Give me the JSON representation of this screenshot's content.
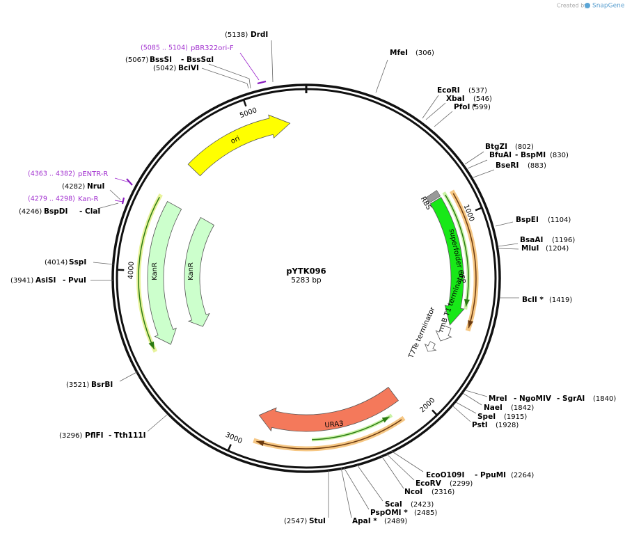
{
  "header": {
    "created_by": "Created by",
    "brand": "SnapGene"
  },
  "map": {
    "name": "pYTK096",
    "size": "5283 bp"
  },
  "ticks": [
    "1000",
    "2000",
    "3000",
    "4000",
    "5000"
  ],
  "features": [
    "ori",
    "KanR",
    "KanR",
    "URA3",
    "superfolder GFP",
    "RBS",
    "rrnB T1 terminator",
    "T7Te terminator"
  ],
  "primers": [
    {
      "range": "(5085 .. 5104)",
      "name": "pBR322ori-F"
    },
    {
      "range": "(4363 .. 4382)",
      "name": "pENTR-R"
    },
    {
      "range": "(4279 .. 4298)",
      "name": "Kan-R"
    }
  ],
  "enzymes": [
    {
      "position": "(5138)",
      "names": [
        "DrdI"
      ]
    },
    {
      "position": "(306)",
      "names": [
        "MfeI"
      ]
    },
    {
      "position": "(537)",
      "names": [
        "EcoRI"
      ]
    },
    {
      "position": "(546)",
      "names": [
        "XbaI"
      ]
    },
    {
      "position": "(599)",
      "names": [
        "PfoI *"
      ]
    },
    {
      "position": "(802)",
      "names": [
        "BtgZI"
      ]
    },
    {
      "position": "(830)",
      "names": [
        "BfuAI",
        "- BspMI"
      ]
    },
    {
      "position": "(883)",
      "names": [
        "BseRI"
      ]
    },
    {
      "position": "(1104)",
      "names": [
        "BspEI"
      ]
    },
    {
      "position": "(1196)",
      "names": [
        "BsaAI"
      ]
    },
    {
      "position": "(1204)",
      "names": [
        "MluI"
      ]
    },
    {
      "position": "(1419)",
      "names": [
        "BclI *"
      ]
    },
    {
      "position": "(1840)",
      "names": [
        "MreI",
        "- NgoMIV",
        "- SgrAI"
      ]
    },
    {
      "position": "(1842)",
      "names": [
        "NaeI"
      ]
    },
    {
      "position": "(1915)",
      "names": [
        "SpeI"
      ]
    },
    {
      "position": "(1928)",
      "names": [
        "PstI"
      ]
    },
    {
      "position": "(2264)",
      "names": [
        "EcoO109I",
        "- PpuMI"
      ]
    },
    {
      "position": "(2299)",
      "names": [
        "EcoRV"
      ]
    },
    {
      "position": "(2316)",
      "names": [
        "NcoI"
      ]
    },
    {
      "position": "(2423)",
      "names": [
        "ScaI"
      ]
    },
    {
      "position": "(2485)",
      "names": [
        "PspOMI *"
      ]
    },
    {
      "position": "(2489)",
      "names": [
        "ApaI *"
      ]
    },
    {
      "position": "(2547)",
      "names": [
        "StuI"
      ]
    },
    {
      "position": "(3521)",
      "names": [
        "BsrBI"
      ]
    },
    {
      "position": "(3296)",
      "names": [
        "PflFI",
        "- Tth111I"
      ]
    },
    {
      "position": "(4014)",
      "names": [
        "SspI"
      ]
    },
    {
      "position": "(3941)",
      "names": [
        "AsiSI",
        "- PvuI"
      ]
    },
    {
      "position": "(4246)",
      "names": [
        "BspDI",
        "- ClaI"
      ]
    },
    {
      "position": "(4282)",
      "names": [
        "NruI"
      ]
    },
    {
      "position": "(5067)",
      "names": [
        "BssSI",
        "- BssSαI"
      ]
    },
    {
      "position": "(5042)",
      "names": [
        "BciVI"
      ]
    }
  ]
}
